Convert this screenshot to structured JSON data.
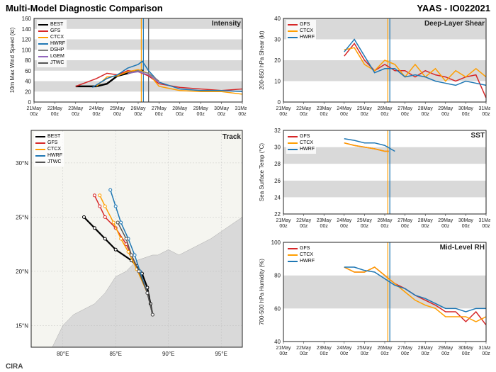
{
  "header": {
    "title": "Multi-Model Diagnostic Comparison",
    "storm": "YAAS - IO022021"
  },
  "footer": "CIRA",
  "colors": {
    "BEST": "#000000",
    "GFS": "#d62728",
    "CTCX": "#ff9e00",
    "HWRF": "#1f77b4",
    "DSHP": "#7f7f7f",
    "LGEM": "#9467bd",
    "JTWC": "#555555",
    "band": "#d9d9d9",
    "bg": "#ffffff",
    "grid": "#e8e8e8",
    "text": "#222222"
  },
  "xaxis": {
    "labels": [
      "21May\n00z",
      "22May\n00z",
      "23May\n00z",
      "24May\n00z",
      "25May\n00z",
      "26May\n00z",
      "27May\n00z",
      "28May\n00z",
      "29May\n00z",
      "30May\n00z",
      "31May\n00z"
    ],
    "min": 0,
    "max": 10
  },
  "panels": {
    "intensity": {
      "title": "Intensity",
      "ylabel": "10m Max Wind Speed (kt)",
      "ylim": [
        0,
        160
      ],
      "ytick": 20,
      "legend": [
        "BEST",
        "GFS",
        "CTCX",
        "HWRF",
        "DSHP",
        "LGEM",
        "JTWC"
      ],
      "vlines": [
        {
          "x": 5.15,
          "color": "#ff9e00"
        },
        {
          "x": 5.25,
          "color": "#1f77b4"
        },
        {
          "x": 5.5,
          "color": "#555555"
        }
      ],
      "series": {
        "BEST": [
          [
            2,
            30
          ],
          [
            2.5,
            30
          ],
          [
            3,
            30
          ],
          [
            3.5,
            35
          ],
          [
            4,
            50
          ],
          [
            4.5,
            55
          ],
          [
            5,
            60
          ],
          [
            5.25,
            60
          ]
        ],
        "GFS": [
          [
            2,
            30
          ],
          [
            3,
            45
          ],
          [
            3.5,
            55
          ],
          [
            4,
            52
          ],
          [
            4.5,
            60
          ],
          [
            5,
            58
          ],
          [
            5.5,
            50
          ],
          [
            6,
            35
          ],
          [
            7,
            28
          ],
          [
            8,
            25
          ],
          [
            9,
            22
          ],
          [
            10,
            25
          ]
        ],
        "CTCX": [
          [
            3,
            30
          ],
          [
            3.5,
            48
          ],
          [
            4,
            50
          ],
          [
            4.5,
            58
          ],
          [
            5,
            62
          ],
          [
            5.5,
            55
          ],
          [
            6,
            30
          ],
          [
            7,
            22
          ],
          [
            8,
            20
          ],
          [
            9,
            20
          ],
          [
            10,
            15
          ]
        ],
        "HWRF": [
          [
            2.8,
            28
          ],
          [
            3.5,
            45
          ],
          [
            4,
            52
          ],
          [
            4.5,
            65
          ],
          [
            5,
            72
          ],
          [
            5.2,
            78
          ],
          [
            5.5,
            60
          ],
          [
            6,
            38
          ],
          [
            7,
            25
          ],
          [
            8,
            22
          ],
          [
            9,
            22
          ],
          [
            10,
            20
          ]
        ],
        "DSHP": [
          [
            4.5,
            55
          ],
          [
            5,
            60
          ],
          [
            5.5,
            55
          ],
          [
            6,
            40
          ]
        ],
        "LGEM": [
          [
            4.5,
            55
          ],
          [
            5,
            58
          ],
          [
            5.5,
            52
          ],
          [
            6,
            38
          ]
        ]
      }
    },
    "shear": {
      "title": "Deep-Layer Shear",
      "ylabel": "200-850 hPa Shear (kt)",
      "ylim": [
        0,
        40
      ],
      "ytick": 10,
      "legend": [
        "GFS",
        "CTCX",
        "HWRF"
      ],
      "vlines": [
        {
          "x": 5.15,
          "color": "#ff9e00"
        },
        {
          "x": 5.25,
          "color": "#1f77b4"
        }
      ],
      "series": {
        "GFS": [
          [
            3,
            22
          ],
          [
            3.5,
            28
          ],
          [
            4,
            20
          ],
          [
            4.5,
            15
          ],
          [
            5,
            18
          ],
          [
            5.5,
            15
          ],
          [
            6,
            15
          ],
          [
            6.5,
            12
          ],
          [
            7,
            15
          ],
          [
            7.5,
            13
          ],
          [
            8,
            12
          ],
          [
            8.5,
            10
          ],
          [
            9,
            12
          ],
          [
            9.5,
            13
          ],
          [
            10,
            2
          ]
        ],
        "CTCX": [
          [
            3,
            25
          ],
          [
            3.5,
            26
          ],
          [
            4,
            18
          ],
          [
            4.5,
            15
          ],
          [
            5,
            20
          ],
          [
            5.5,
            18
          ],
          [
            6,
            12
          ],
          [
            6.5,
            18
          ],
          [
            7,
            12
          ],
          [
            7.5,
            16
          ],
          [
            8,
            10
          ],
          [
            8.5,
            15
          ],
          [
            9,
            12
          ],
          [
            9.5,
            16
          ],
          [
            10,
            12
          ]
        ],
        "HWRF": [
          [
            3,
            24
          ],
          [
            3.5,
            30
          ],
          [
            4,
            22
          ],
          [
            4.5,
            14
          ],
          [
            5,
            16
          ],
          [
            5.5,
            16
          ],
          [
            6,
            12
          ],
          [
            6.5,
            13
          ],
          [
            7,
            12
          ],
          [
            7.5,
            10
          ],
          [
            8,
            9
          ],
          [
            8.5,
            8
          ],
          [
            9,
            10
          ],
          [
            9.5,
            9
          ],
          [
            10,
            8
          ]
        ]
      }
    },
    "sst": {
      "title": "SST",
      "ylabel": "Sea Surface Temp (°C)",
      "ylim": [
        22,
        32
      ],
      "ytick": 2,
      "legend": [
        "GFS",
        "CTCX",
        "HWRF"
      ],
      "vlines": [
        {
          "x": 5.15,
          "color": "#ff9e00"
        },
        {
          "x": 5.25,
          "color": "#1f77b4"
        }
      ],
      "series": {
        "GFS": [
          [
            3,
            30.5
          ],
          [
            3.5,
            30.2
          ],
          [
            4,
            30
          ],
          [
            4.5,
            29.8
          ],
          [
            5,
            29.5
          ],
          [
            5.2,
            29.5
          ]
        ],
        "CTCX": [
          [
            3,
            30.5
          ],
          [
            3.5,
            30.2
          ],
          [
            4,
            30
          ],
          [
            4.5,
            29.8
          ],
          [
            5,
            29.5
          ],
          [
            5.2,
            29.5
          ]
        ],
        "HWRF": [
          [
            3,
            31
          ],
          [
            3.5,
            30.8
          ],
          [
            4,
            30.5
          ],
          [
            4.5,
            30.5
          ],
          [
            5,
            30.2
          ],
          [
            5.5,
            29.5
          ]
        ]
      }
    },
    "rh": {
      "title": "Mid-Level RH",
      "ylabel": "700-500 hPa Humidity (%)",
      "ylim": [
        40,
        100
      ],
      "ytick": 20,
      "legend": [
        "GFS",
        "CTCX",
        "HWRF"
      ],
      "vlines": [
        {
          "x": 5.15,
          "color": "#ff9e00"
        },
        {
          "x": 5.25,
          "color": "#1f77b4"
        }
      ],
      "series": {
        "GFS": [
          [
            3,
            85
          ],
          [
            3.5,
            82
          ],
          [
            4,
            82
          ],
          [
            4.5,
            85
          ],
          [
            5,
            80
          ],
          [
            5.5,
            75
          ],
          [
            6,
            72
          ],
          [
            6.5,
            68
          ],
          [
            7,
            65
          ],
          [
            7.5,
            62
          ],
          [
            8,
            58
          ],
          [
            8.5,
            58
          ],
          [
            9,
            52
          ],
          [
            9.5,
            58
          ],
          [
            10,
            50
          ]
        ],
        "CTCX": [
          [
            3,
            85
          ],
          [
            3.5,
            82
          ],
          [
            4,
            82
          ],
          [
            4.5,
            85
          ],
          [
            5,
            80
          ],
          [
            5.5,
            75
          ],
          [
            6,
            70
          ],
          [
            6.5,
            65
          ],
          [
            7,
            62
          ],
          [
            7.5,
            60
          ],
          [
            8,
            55
          ],
          [
            8.5,
            55
          ],
          [
            9,
            55
          ],
          [
            9.5,
            52
          ],
          [
            10,
            55
          ]
        ],
        "HWRF": [
          [
            3,
            85
          ],
          [
            3.5,
            85
          ],
          [
            4,
            83
          ],
          [
            4.5,
            82
          ],
          [
            5,
            78
          ],
          [
            5.5,
            74
          ],
          [
            6,
            72
          ],
          [
            6.5,
            68
          ],
          [
            7,
            66
          ],
          [
            7.5,
            63
          ],
          [
            8,
            60
          ],
          [
            8.5,
            60
          ],
          [
            9,
            58
          ],
          [
            9.5,
            60
          ],
          [
            10,
            60
          ]
        ]
      }
    },
    "track": {
      "title": "Track",
      "xlim": [
        77,
        97
      ],
      "ylim": [
        13,
        33
      ],
      "xtick": 5,
      "ytick": 5,
      "legend": [
        "BEST",
        "GFS",
        "CTCX",
        "HWRF",
        "JTWC"
      ],
      "series": {
        "BEST": [
          [
            88.5,
            16
          ],
          [
            88.3,
            17
          ],
          [
            88,
            18.5
          ],
          [
            87.5,
            19.8
          ],
          [
            87,
            20.5
          ],
          [
            86.5,
            21
          ],
          [
            85,
            22
          ],
          [
            84,
            23
          ],
          [
            83,
            24
          ],
          [
            82,
            25
          ]
        ],
        "GFS": [
          [
            88.5,
            16
          ],
          [
            88,
            18
          ],
          [
            87.2,
            20
          ],
          [
            86.5,
            21.5
          ],
          [
            86,
            22.5
          ],
          [
            85,
            24
          ],
          [
            84,
            25
          ],
          [
            83.5,
            26
          ],
          [
            83,
            27
          ]
        ],
        "CTCX": [
          [
            88.5,
            16
          ],
          [
            88,
            18
          ],
          [
            87,
            20.2
          ],
          [
            86.2,
            21.8
          ],
          [
            85.5,
            23
          ],
          [
            84.8,
            24.5
          ],
          [
            84,
            26
          ],
          [
            83.5,
            27
          ]
        ],
        "HWRF": [
          [
            88.5,
            16
          ],
          [
            88,
            18
          ],
          [
            87.3,
            20
          ],
          [
            86.8,
            21.5
          ],
          [
            86.2,
            23
          ],
          [
            85.5,
            24.5
          ],
          [
            85,
            26
          ],
          [
            84.5,
            27.5
          ]
        ],
        "JTWC": [
          [
            88.5,
            16
          ],
          [
            88,
            18
          ],
          [
            87.2,
            20
          ],
          [
            86.5,
            21.5
          ],
          [
            86,
            23
          ],
          [
            85.2,
            24.5
          ]
        ]
      }
    }
  }
}
